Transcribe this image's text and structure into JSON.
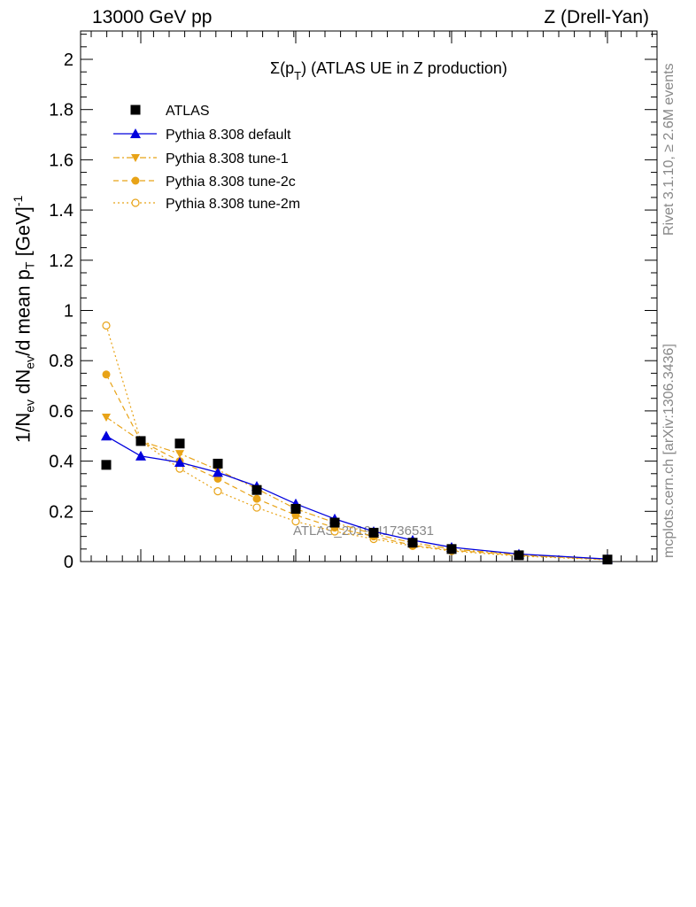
{
  "header": {
    "left": "13000 GeV pp",
    "right": "Z (Drell-Yan)"
  },
  "side": {
    "rivet": "Rivet 3.1.10, ≥ 2.6M events",
    "mcplots": "mcplots.cern.ch [arXiv:1306.3436]"
  },
  "watermark": "ATLAS_2019_I1736531",
  "colors": {
    "atlas": "#000000",
    "default": "#0000dd",
    "tune": "#e8a317"
  },
  "chart_data": {
    "type": "line",
    "title": "Σ(p_T) (ATLAS UE in Z production)",
    "ylabel": "1/N_ev dN_ev/d mean p_T [GeV]^-1",
    "xlabel": "",
    "ylim": [
      0,
      2.13
    ],
    "yticks": [
      "0",
      "0.2",
      "0.4",
      "0.6",
      "0.8",
      "1",
      "1.2",
      "1.4",
      "1.6",
      "1.8",
      "2"
    ],
    "legend_position": "top-left",
    "series": [
      {
        "name": "ATLAS",
        "marker": "square",
        "points": [
          [
            1,
            0.385
          ],
          [
            2,
            0.48
          ],
          [
            3,
            0.47
          ],
          [
            4,
            0.39
          ],
          [
            5,
            0.285
          ],
          [
            6,
            0.21
          ],
          [
            7,
            0.155
          ],
          [
            8,
            0.115
          ],
          [
            9,
            0.075
          ],
          [
            10,
            0.05
          ],
          [
            11,
            0.025
          ],
          [
            12,
            0.008
          ]
        ]
      },
      {
        "name": "Pythia 8.308 default",
        "marker": "triangle-up",
        "line": "solid",
        "points": [
          [
            1,
            0.5
          ],
          [
            2,
            0.42
          ],
          [
            3,
            0.395
          ],
          [
            4,
            0.355
          ],
          [
            5,
            0.3
          ],
          [
            6,
            0.23
          ],
          [
            7,
            0.17
          ],
          [
            8,
            0.12
          ],
          [
            9,
            0.085
          ],
          [
            10,
            0.057
          ],
          [
            11,
            0.03
          ],
          [
            12,
            0.01
          ]
        ]
      },
      {
        "name": "Pythia 8.308 tune-1",
        "marker": "triangle-down",
        "line": "dashdot",
        "points": [
          [
            1,
            0.575
          ],
          [
            2,
            0.48
          ],
          [
            3,
            0.43
          ],
          [
            4,
            0.365
          ],
          [
            5,
            0.29
          ],
          [
            6,
            0.21
          ],
          [
            7,
            0.155
          ],
          [
            8,
            0.11
          ],
          [
            9,
            0.075
          ],
          [
            10,
            0.05
          ],
          [
            11,
            0.027
          ],
          [
            12,
            0.009
          ]
        ]
      },
      {
        "name": "Pythia 8.308 tune-2c",
        "marker": "circle-filled",
        "line": "dashed",
        "points": [
          [
            1,
            0.745
          ],
          [
            2,
            0.48
          ],
          [
            3,
            0.4
          ],
          [
            4,
            0.33
          ],
          [
            5,
            0.25
          ],
          [
            6,
            0.185
          ],
          [
            7,
            0.135
          ],
          [
            8,
            0.1
          ],
          [
            9,
            0.065
          ],
          [
            10,
            0.045
          ],
          [
            11,
            0.025
          ],
          [
            12,
            0.008
          ]
        ]
      },
      {
        "name": "Pythia 8.308 tune-2m",
        "marker": "circle-open",
        "line": "dotted",
        "points": [
          [
            1,
            0.94
          ],
          [
            2,
            0.48
          ],
          [
            3,
            0.37
          ],
          [
            4,
            0.28
          ],
          [
            5,
            0.215
          ],
          [
            6,
            0.16
          ],
          [
            7,
            0.12
          ],
          [
            8,
            0.09
          ],
          [
            9,
            0.062
          ],
          [
            10,
            0.042
          ],
          [
            11,
            0.022
          ],
          [
            12,
            0.007
          ]
        ]
      }
    ]
  }
}
